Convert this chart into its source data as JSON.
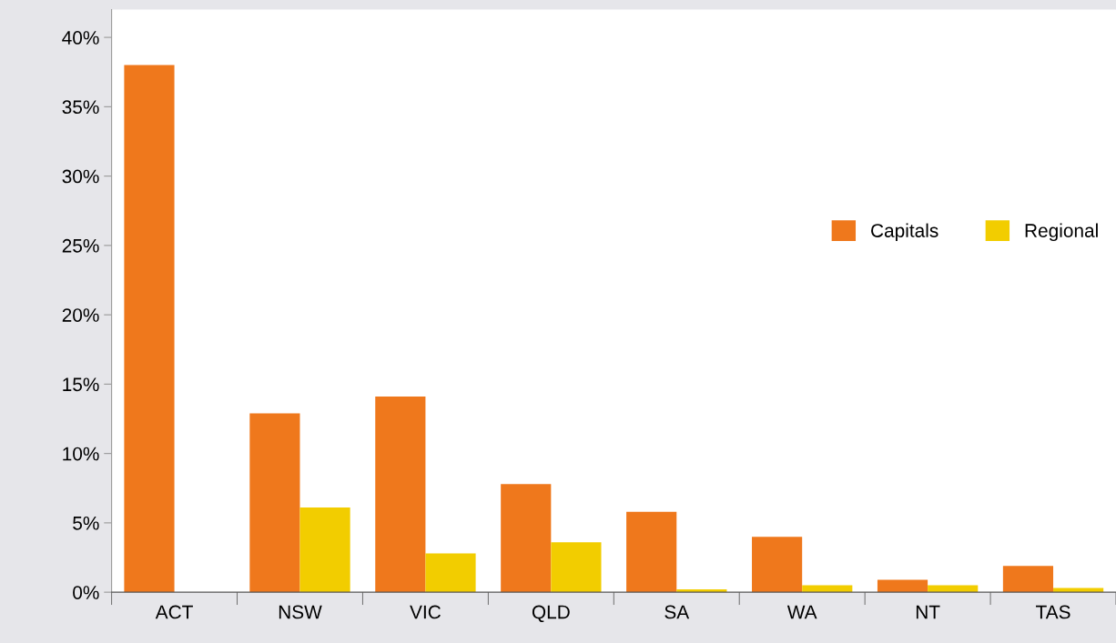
{
  "chart_data": {
    "type": "bar",
    "categories": [
      "ACT",
      "NSW",
      "VIC",
      "QLD",
      "SA",
      "WA",
      "NT",
      "TAS"
    ],
    "series": [
      {
        "name": "Capitals",
        "color": "#ef781c",
        "values": [
          38,
          12.9,
          14.1,
          7.8,
          5.8,
          4.0,
          0.9,
          1.9
        ]
      },
      {
        "name": "Regional",
        "color": "#f2cd00",
        "values": [
          0,
          6.1,
          2.8,
          3.6,
          0.2,
          0.5,
          0.5,
          0.3
        ]
      }
    ],
    "ylim": [
      0,
      42
    ],
    "yticks": [
      {
        "value": 0,
        "label": "0%"
      },
      {
        "value": 5,
        "label": "5%"
      },
      {
        "value": 10,
        "label": "10%"
      },
      {
        "value": 15,
        "label": "15%"
      },
      {
        "value": 20,
        "label": "20%"
      },
      {
        "value": 25,
        "label": "25%"
      },
      {
        "value": 30,
        "label": "30%"
      },
      {
        "value": 35,
        "label": "35%"
      },
      {
        "value": 40,
        "label": "40%"
      }
    ],
    "grid": false,
    "legend": "right"
  }
}
